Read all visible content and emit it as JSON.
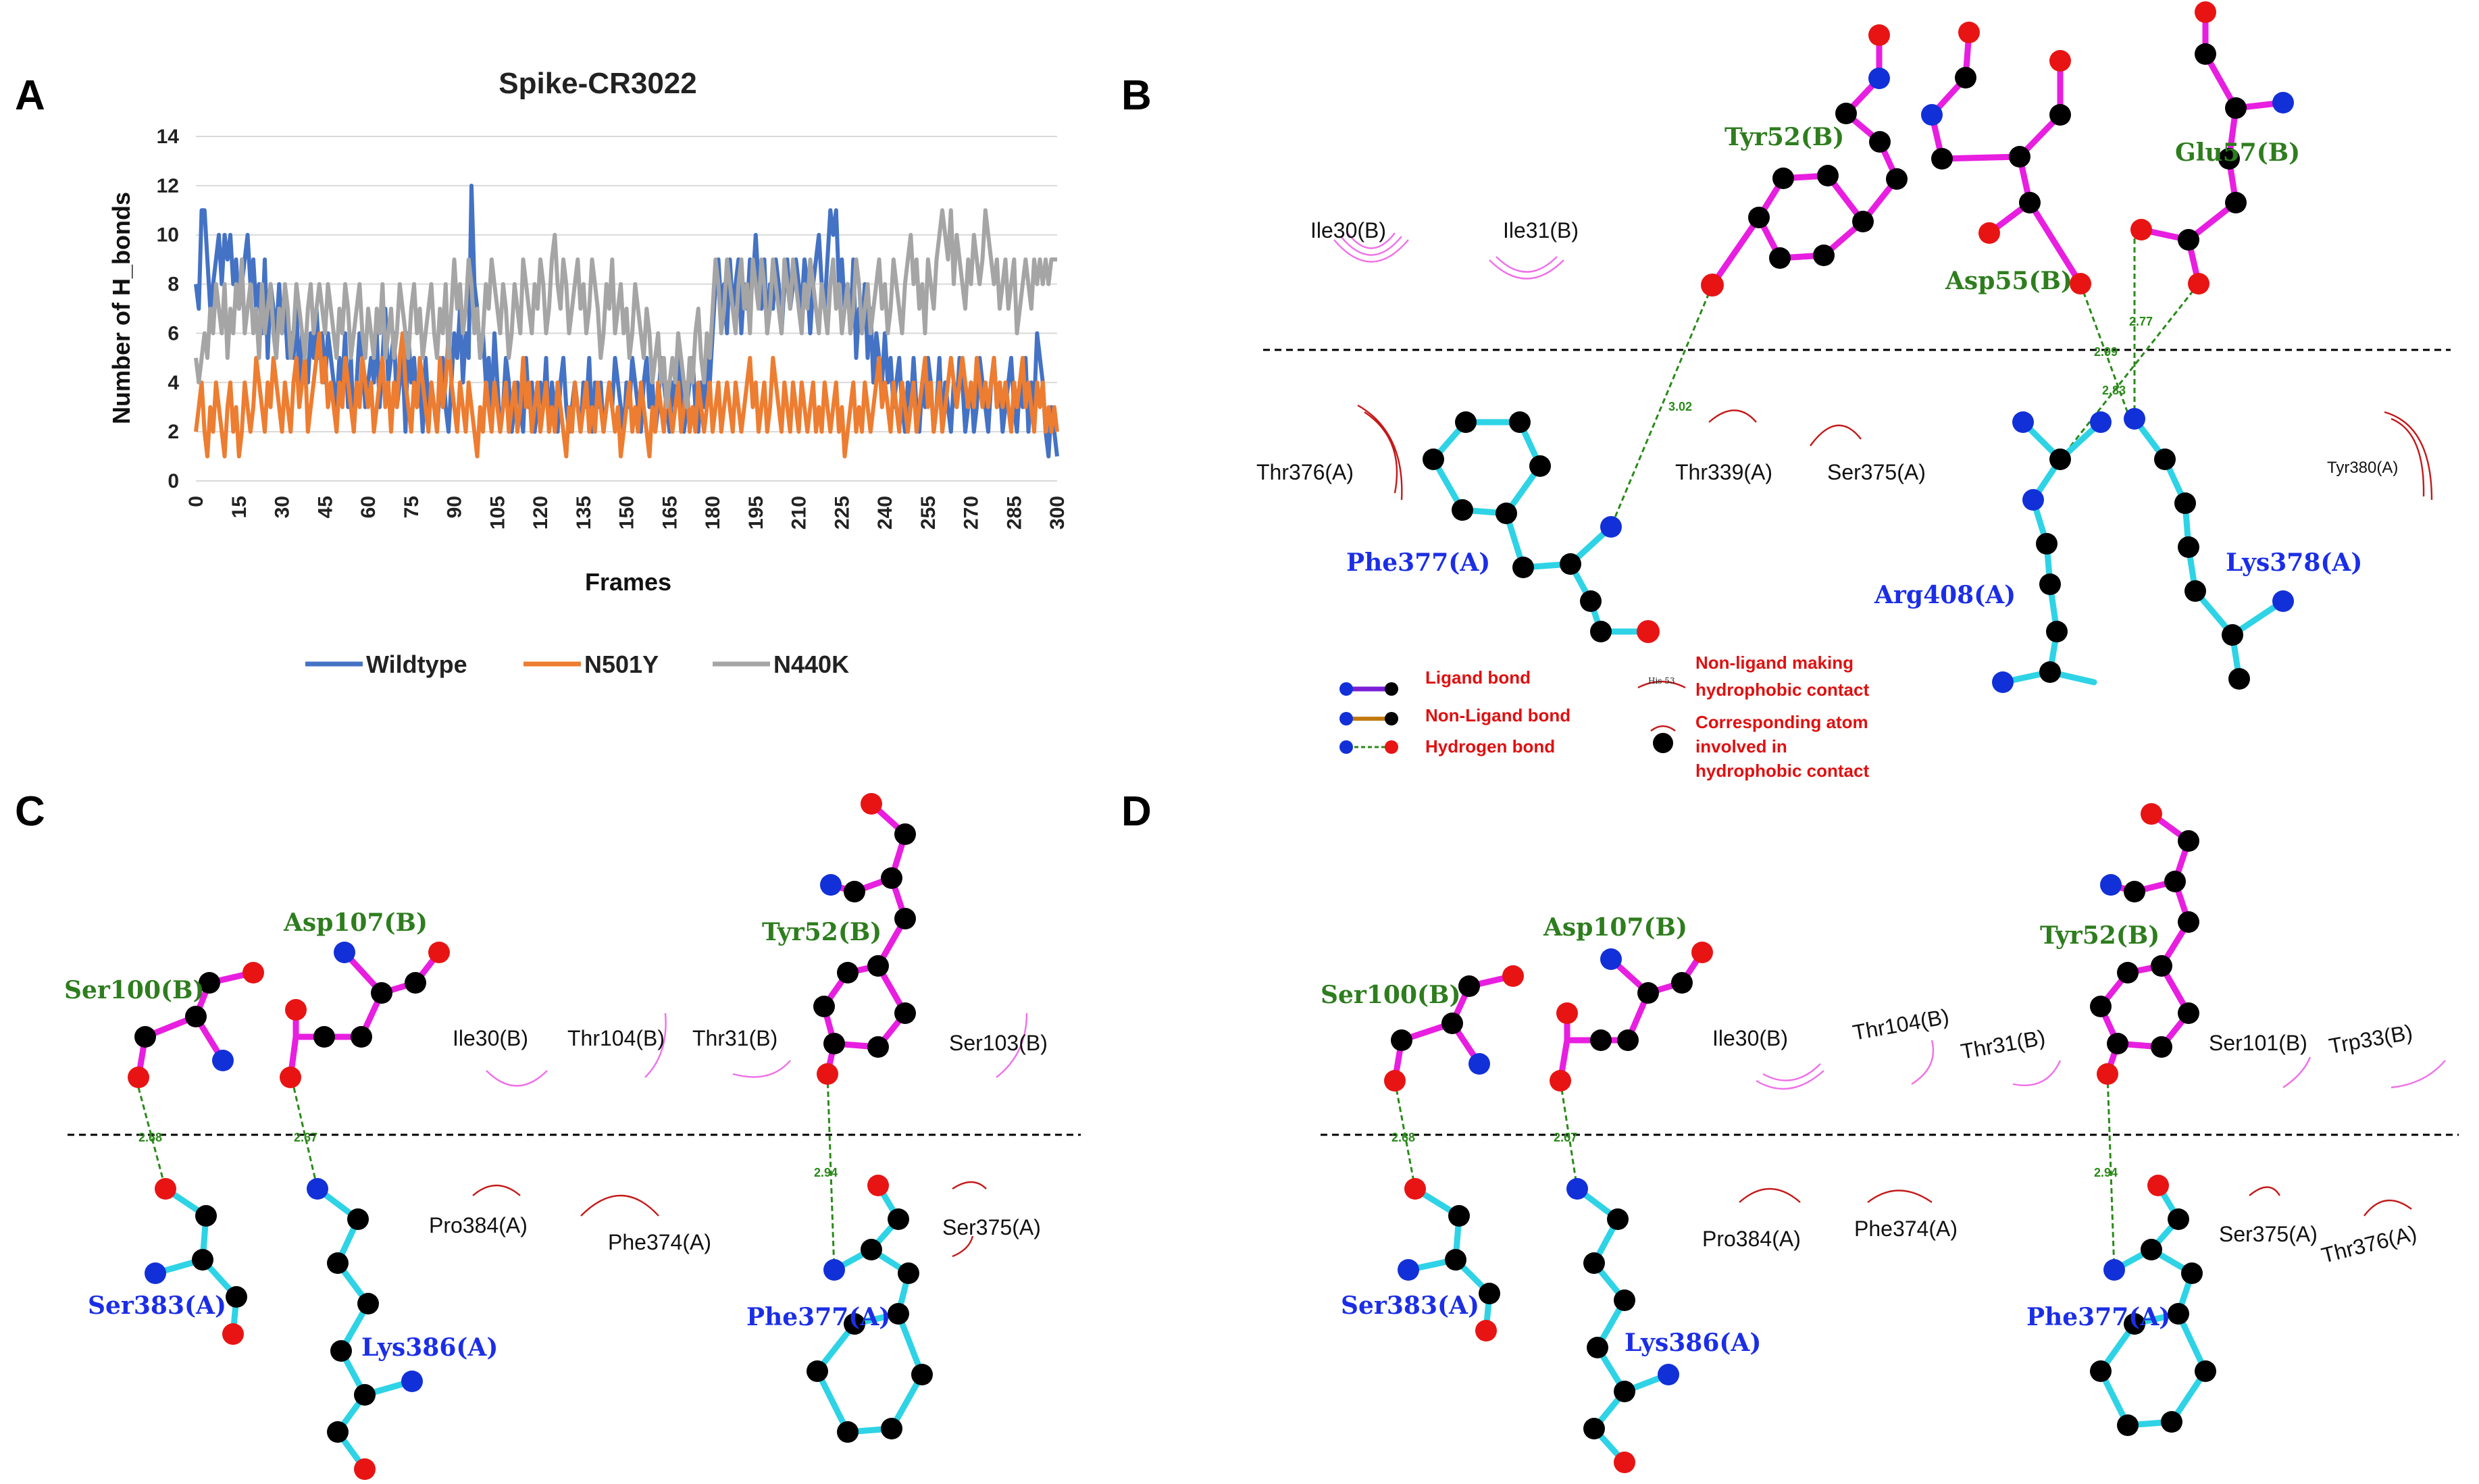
{
  "panels": {
    "A": {
      "letter": "A",
      "chart_data": {
        "type": "line",
        "title": "Spike-CR3022",
        "xlabel": "Frames",
        "ylabel": "Number of H_bonds",
        "xlim": [
          0,
          300
        ],
        "ylim": [
          0,
          14
        ],
        "x_ticks": [
          "0",
          "15",
          "30",
          "45",
          "60",
          "75",
          "90",
          "105",
          "120",
          "135",
          "150",
          "165",
          "180",
          "195",
          "210",
          "225",
          "240",
          "255",
          "270",
          "285",
          "300"
        ],
        "y_ticks": [
          "0",
          "2",
          "4",
          "6",
          "8",
          "10",
          "12",
          "14"
        ],
        "grid": true,
        "legend_position": "bottom",
        "series": [
          {
            "name": "Wildtype",
            "color": "#4472c4",
            "values": [
              8,
              7,
              11,
              11,
              9,
              7,
              8,
              9,
              10,
              8,
              10,
              9,
              10,
              8,
              9,
              7,
              8,
              9,
              10,
              8,
              9,
              7,
              8,
              6,
              9,
              5,
              8,
              7,
              6,
              8,
              6,
              7,
              5,
              6,
              5,
              7,
              4,
              6,
              5,
              4,
              6,
              5,
              7,
              5,
              6,
              4,
              6,
              5,
              4,
              3,
              5,
              4,
              6,
              3,
              5,
              2,
              4,
              6,
              5,
              3,
              4,
              5,
              4,
              6,
              3,
              5,
              7,
              4,
              5,
              6,
              3,
              4,
              5,
              2,
              6,
              4,
              5,
              3,
              4,
              2,
              5,
              3,
              4,
              3,
              2,
              4,
              5,
              3,
              2,
              4,
              6,
              5,
              7,
              4,
              6,
              5,
              12,
              8,
              7,
              5,
              6,
              4,
              5,
              3,
              6,
              4,
              2,
              3,
              5,
              4,
              2,
              3,
              4,
              3,
              2,
              5,
              3,
              4,
              2,
              3,
              4,
              3,
              5,
              2,
              4,
              3,
              2,
              4,
              5,
              3,
              2,
              3,
              4,
              3,
              2,
              4,
              3,
              5,
              2,
              4,
              3,
              4,
              2,
              3,
              4,
              3,
              5,
              4,
              3,
              2,
              4,
              3,
              5,
              4,
              3,
              2,
              4,
              5,
              3,
              4,
              2,
              3,
              5,
              4,
              3,
              2,
              4,
              3,
              5,
              4,
              2,
              3,
              4,
              5,
              3,
              2,
              4,
              3,
              5,
              4,
              6,
              8,
              9,
              7,
              8,
              6,
              9,
              7,
              8,
              9,
              6,
              8,
              7,
              9,
              8,
              10,
              8,
              7,
              9,
              6,
              8,
              7,
              9,
              8,
              6,
              8,
              9,
              7,
              8,
              9,
              8,
              7,
              9,
              8,
              6,
              8,
              9,
              10,
              8,
              7,
              9,
              11,
              10,
              11,
              8,
              9,
              7,
              8,
              6,
              9,
              5,
              7,
              6,
              8,
              5,
              7,
              4,
              6,
              5,
              4,
              6,
              4,
              5,
              3,
              4,
              5,
              3,
              2,
              4,
              3,
              5,
              3,
              2,
              4,
              3,
              5,
              4,
              2,
              3,
              5,
              2,
              4,
              3,
              2,
              4,
              3,
              5,
              4,
              2,
              3,
              4,
              2,
              3,
              5,
              4,
              3,
              2,
              4,
              5,
              3,
              4,
              2,
              3,
              4,
              5,
              3,
              2,
              4,
              3,
              5,
              2,
              4,
              3,
              6,
              5,
              4,
              2,
              1,
              3,
              2,
              1
            ]
          },
          {
            "name": "N501Y",
            "color": "#ed7d31",
            "values": [
              2,
              3,
              4,
              2,
              1,
              3,
              2,
              4,
              3,
              2,
              1,
              3,
              4,
              2,
              3,
              1,
              2,
              4,
              3,
              2,
              3,
              5,
              4,
              3,
              2,
              4,
              3,
              5,
              4,
              3,
              2,
              4,
              3,
              2,
              4,
              5,
              3,
              4,
              5,
              2,
              3,
              4,
              5,
              6,
              4,
              5,
              3,
              4,
              3,
              2,
              4,
              3,
              5,
              4,
              3,
              2,
              4,
              3,
              5,
              4,
              3,
              4,
              2,
              3,
              4,
              5,
              3,
              4,
              2,
              4,
              3,
              5,
              6,
              4,
              3,
              2,
              4,
              3,
              5,
              4,
              3,
              2,
              4,
              3,
              2,
              5,
              3,
              4,
              6,
              4,
              3,
              2,
              4,
              3,
              2,
              4,
              3,
              2,
              1,
              3,
              2,
              4,
              3,
              2,
              4,
              3,
              2,
              3,
              4,
              2,
              3,
              4,
              2,
              3,
              5,
              3,
              4,
              2,
              3,
              4,
              2,
              3,
              4,
              2,
              3,
              2,
              4,
              3,
              2,
              1,
              3,
              2,
              4,
              3,
              2,
              3,
              4,
              2,
              3,
              2,
              4,
              3,
              2,
              3,
              4,
              3,
              2,
              3,
              1,
              2,
              3,
              4,
              2,
              3,
              2,
              4,
              3,
              2,
              1,
              3,
              2,
              4,
              3,
              2,
              4,
              3,
              2,
              3,
              4,
              2,
              3,
              4,
              2,
              3,
              2,
              4,
              3,
              2,
              3,
              4,
              2,
              3,
              4,
              2,
              3,
              4,
              3,
              2,
              4,
              3,
              2,
              3,
              4,
              5,
              3,
              4,
              2,
              3,
              4,
              2,
              3,
              5,
              4,
              3,
              2,
              4,
              3,
              2,
              4,
              3,
              2,
              4,
              3,
              2,
              3,
              4,
              2,
              3,
              2,
              4,
              3,
              2,
              3,
              4,
              2,
              3,
              1,
              2,
              3,
              4,
              2,
              3,
              2,
              4,
              3,
              2,
              3,
              4,
              5,
              3,
              4,
              3,
              2,
              4,
              3,
              2,
              4,
              3,
              2,
              3,
              4,
              2,
              3,
              4,
              5,
              3,
              4,
              2,
              3,
              4,
              2,
              3,
              4,
              5,
              4,
              3,
              4,
              5,
              4,
              3,
              4,
              3,
              5,
              4,
              3,
              4,
              3,
              4,
              5,
              3,
              4,
              3,
              4,
              3,
              2,
              4,
              3,
              4,
              5,
              3,
              4,
              3,
              2,
              4,
              3,
              4,
              2,
              3,
              2,
              3,
              2
            ]
          },
          {
            "name": "N440K",
            "color": "#a5a5a5",
            "values": [
              5,
              4,
              5,
              6,
              5,
              7,
              6,
              8,
              7,
              6,
              8,
              5,
              7,
              6,
              8,
              7,
              9,
              6,
              7,
              8,
              6,
              7,
              5,
              8,
              6,
              7,
              8,
              6,
              5,
              7,
              6,
              8,
              7,
              5,
              6,
              8,
              7,
              6,
              5,
              7,
              8,
              6,
              7,
              8,
              7,
              6,
              8,
              7,
              6,
              5,
              7,
              6,
              8,
              7,
              5,
              6,
              7,
              8,
              6,
              5,
              7,
              6,
              5,
              7,
              6,
              8,
              5,
              6,
              7,
              5,
              6,
              8,
              7,
              6,
              5,
              7,
              8,
              6,
              7,
              5,
              6,
              7,
              8,
              6,
              5,
              7,
              6,
              8,
              5,
              7,
              9,
              7,
              8,
              6,
              7,
              9,
              8,
              6,
              7,
              5,
              6,
              8,
              7,
              9,
              8,
              7,
              6,
              8,
              7,
              5,
              6,
              8,
              7,
              6,
              9,
              8,
              7,
              6,
              8,
              7,
              9,
              8,
              6,
              7,
              9,
              10,
              8,
              7,
              9,
              8,
              6,
              7,
              8,
              9,
              7,
              8,
              6,
              7,
              9,
              8,
              7,
              5,
              6,
              8,
              7,
              9,
              6,
              7,
              8,
              6,
              7,
              5,
              6,
              8,
              7,
              6,
              5,
              7,
              6,
              4,
              5,
              6,
              4,
              5,
              3,
              4,
              5,
              4,
              6,
              5,
              4,
              3,
              5,
              4,
              6,
              7,
              5,
              4,
              6,
              5,
              7,
              9,
              8,
              6,
              7,
              9,
              8,
              7,
              6,
              8,
              9,
              7,
              8,
              6,
              9,
              8,
              7,
              9,
              8,
              6,
              7,
              9,
              8,
              7,
              6,
              9,
              8,
              7,
              9,
              8,
              7,
              6,
              8,
              7,
              9,
              8,
              7,
              6,
              8,
              7,
              6,
              8,
              9,
              7,
              8,
              6,
              7,
              8,
              6,
              7,
              9,
              8,
              6,
              7,
              8,
              6,
              7,
              8,
              9,
              7,
              8,
              6,
              7,
              9,
              8,
              7,
              6,
              8,
              9,
              10,
              8,
              9,
              7,
              8,
              6,
              9,
              8,
              7,
              9,
              10,
              11,
              10,
              9,
              11,
              8,
              10,
              9,
              8,
              7,
              9,
              8,
              10,
              9,
              8,
              9,
              11,
              10,
              9,
              8,
              9,
              7,
              8,
              9,
              7,
              8,
              9,
              6,
              7,
              8,
              9,
              8,
              7,
              9,
              8,
              9,
              8,
              9,
              8,
              9,
              9,
              9
            ]
          }
        ]
      }
    },
    "B": {
      "letter": "B",
      "ligand_residues": [
        "Tyr52(B)",
        "Asp55(B)",
        "Glu57(B)"
      ],
      "receptor_residues": [
        "Phe377(A)",
        "Arg408(A)",
        "Lys378(A)"
      ],
      "hydrophobic_ligand": [
        "Ile30(B)",
        "Ile31(B)"
      ],
      "hydrophobic_receptor": [
        "Thr376(A)",
        "Thr339(A)",
        "Ser375(A)",
        "Tyr380(A)"
      ],
      "hbond_distances": [
        "3.02",
        "2.77",
        "2.99",
        "2.83"
      ],
      "key": {
        "ligand_bond": "Ligand bond",
        "non_ligand_bond": "Non-Ligand bond",
        "hydrogen_bond": "Hydrogen bond",
        "hydrophobic_contact": "Non-ligand making hydrophobic contact",
        "hydrophobic_line1": "Non-ligand making",
        "hydrophobic_line2": "hydrophobic contact",
        "corresponding_line1": "Corresponding atom",
        "corresponding_line2": "involved in",
        "corresponding_line3": "hydrophobic contact",
        "his_label": "His 53"
      }
    },
    "C": {
      "letter": "C",
      "ligand_residues": [
        "Ser100(B)",
        "Asp107(B)",
        "Tyr52(B)"
      ],
      "receptor_residues": [
        "Ser383(A)",
        "Lys386(A)",
        "Phe377(A)"
      ],
      "hydrophobic_ligand": [
        "Ile30(B)",
        "Thr104(B)",
        "Thr31(B)",
        "Ser103(B)"
      ],
      "hydrophobic_receptor": [
        "Pro384(A)",
        "Phe374(A)",
        "Ser375(A)"
      ],
      "hbond_distances": [
        "2.68",
        "2.67",
        "2.94"
      ]
    },
    "D": {
      "letter": "D",
      "ligand_residues": [
        "Ser100(B)",
        "Asp107(B)",
        "Tyr52(B)"
      ],
      "receptor_residues": [
        "Ser383(A)",
        "Lys386(A)",
        "Phe377(A)"
      ],
      "hydrophobic_ligand": [
        "Ile30(B)",
        "Thr104(B)",
        "Thr31(B)",
        "Ser101(B)",
        "Trp33(B)"
      ],
      "hydrophobic_receptor": [
        "Pro384(A)",
        "Phe374(A)",
        "Ser375(A)",
        "Thr376(A)"
      ],
      "hbond_distances": [
        "2.68",
        "2.67",
        "2.94"
      ]
    }
  }
}
